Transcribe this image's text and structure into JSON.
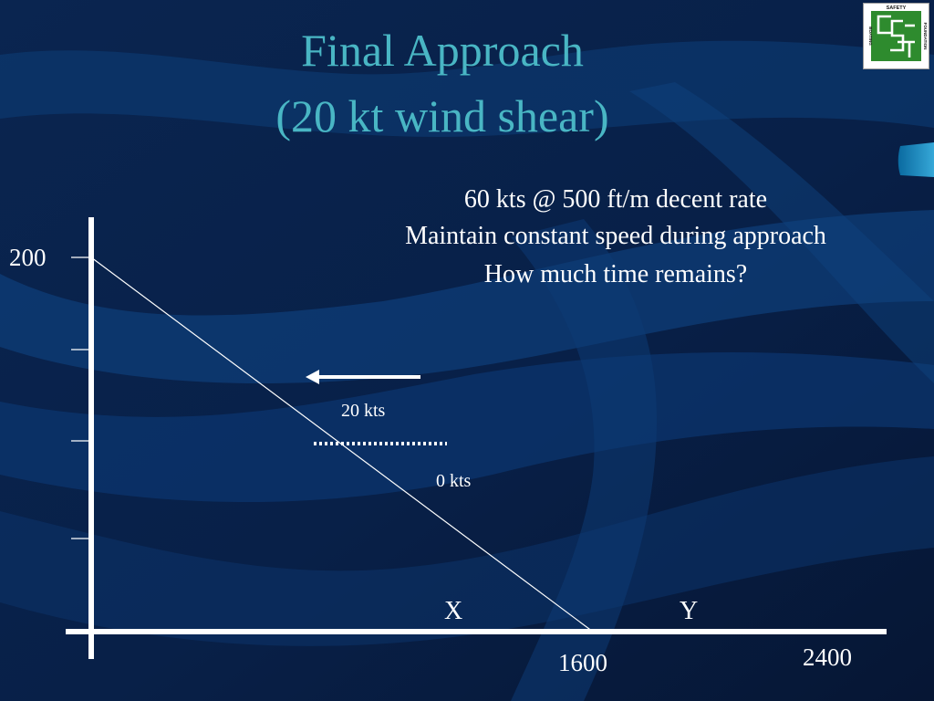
{
  "title": {
    "line1": "Final Approach",
    "line2": "(20 kt wind shear)"
  },
  "info": {
    "line1": "60 kts @ 500 ft/m decent rate",
    "line2": "Maintain constant speed during approach",
    "line3": "How much time remains?"
  },
  "logo": {
    "top_text": "SAFETY",
    "side_text_left": "BOATING",
    "side_text_right": "FOUNDATION",
    "monogram": "CSF",
    "icon": "boating-safety-foundation-logo-icon",
    "color": "#2e8b2e"
  },
  "colors": {
    "title": "#49b6c4",
    "text": "#ffffff",
    "background": "#071a3a",
    "wave": "#0e3f7a"
  },
  "chart_data": {
    "type": "line",
    "title": "",
    "xlabel": "",
    "ylabel": "",
    "xlim": [
      0,
      2400
    ],
    "ylim": [
      0,
      200
    ],
    "y_ticks": [
      200
    ],
    "x_ticks": [
      1600,
      2400
    ],
    "series": [
      {
        "x": [
          0,
          1600
        ],
        "y": [
          200,
          0
        ]
      }
    ],
    "markers": [
      {
        "label": "X"
      },
      {
        "label": "Y"
      }
    ],
    "annotations": {
      "wind": {
        "label": "20 kts",
        "arrow": "left-arrow-icon"
      },
      "calm": {
        "label": "0 kts",
        "style": "dotted-line"
      }
    },
    "grid": false,
    "legend": "none"
  }
}
